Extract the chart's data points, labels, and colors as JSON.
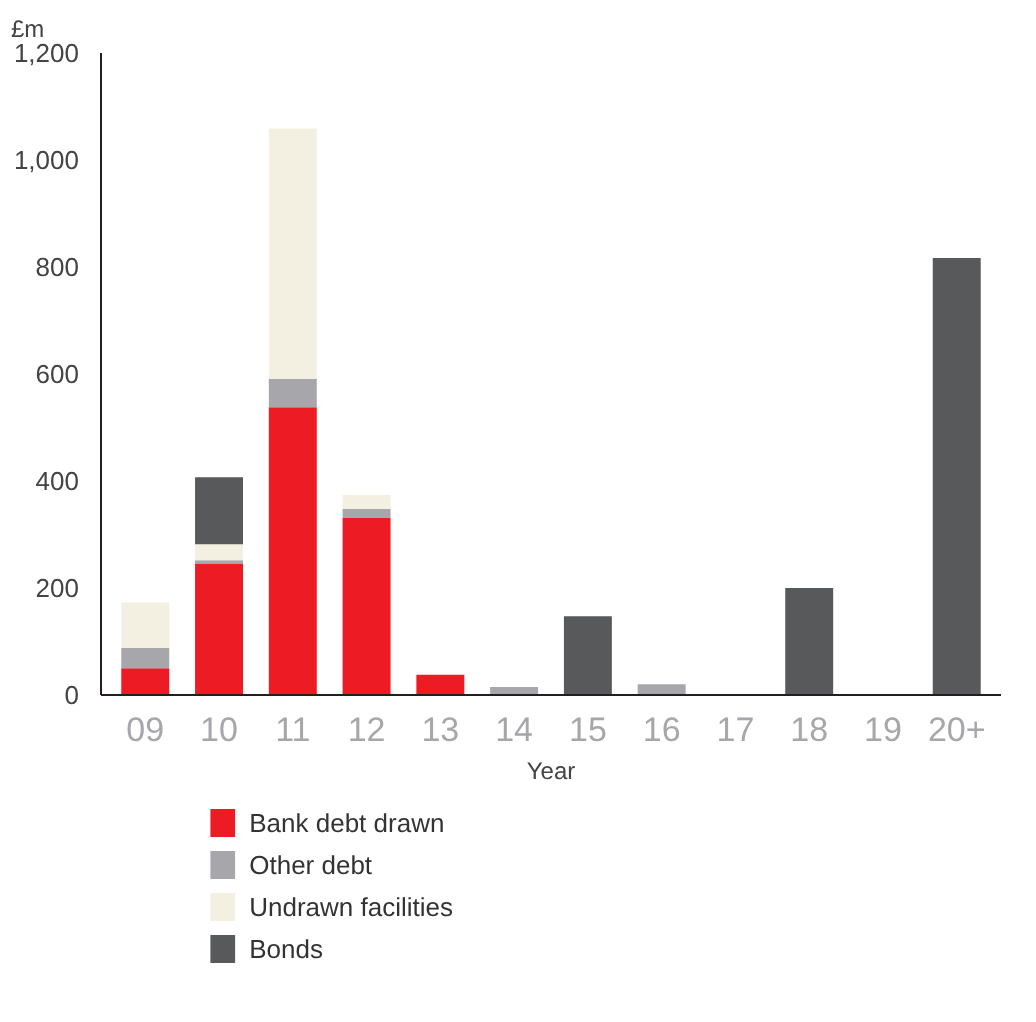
{
  "chart_data": {
    "type": "bar",
    "stacked": true,
    "ylabel": "£m",
    "xlabel": "Year",
    "categories": [
      "09",
      "10",
      "11",
      "12",
      "13",
      "14",
      "15",
      "16",
      "17",
      "18",
      "19",
      "20+"
    ],
    "series": [
      {
        "name": "Bank debt drawn",
        "color": "#ed1c24",
        "values": [
          50,
          245,
          538,
          332,
          38,
          null,
          null,
          null,
          null,
          null,
          null,
          null
        ]
      },
      {
        "name": "Other debt",
        "color": "#a7a6aa",
        "values": [
          38,
          7,
          53,
          16,
          null,
          15,
          null,
          20,
          null,
          null,
          null,
          null
        ]
      },
      {
        "name": "Undrawn facilities",
        "color": "#f3f0e2",
        "values": [
          85,
          30,
          468,
          26,
          null,
          null,
          null,
          null,
          null,
          null,
          null,
          null
        ]
      },
      {
        "name": "Bonds",
        "color": "#58595b",
        "values": [
          null,
          125,
          null,
          null,
          null,
          null,
          147,
          null,
          null,
          200,
          null,
          817
        ]
      }
    ],
    "ylim": [
      0,
      1200
    ],
    "yticks": [
      0,
      {
        "value": 200,
        "label": "200"
      },
      {
        "value": 400,
        "label": "400"
      },
      {
        "value": 600,
        "label": "600"
      },
      {
        "value": 800,
        "label": "800"
      },
      {
        "value": 1000,
        "label": "1,000"
      },
      {
        "value": 1200,
        "label": "1,200"
      }
    ],
    "grid": false,
    "legend": "bottom"
  }
}
